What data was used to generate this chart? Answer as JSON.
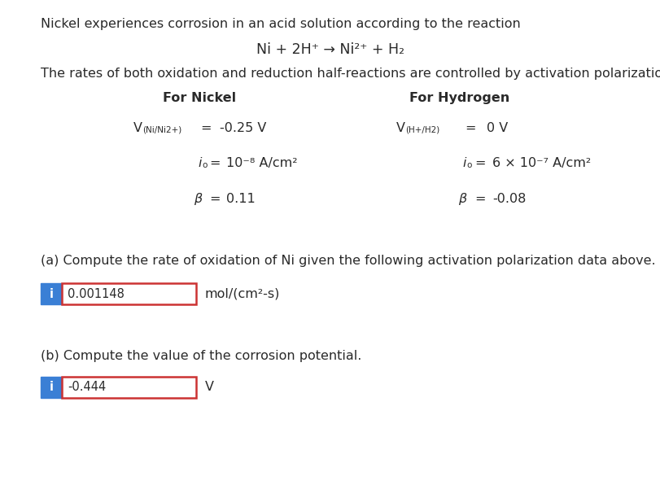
{
  "background_color": "#ffffff",
  "text_color": "#2a2a2a",
  "box_border_color": "#cc3333",
  "info_box_color": "#3a7fd5",
  "line1": "Nickel experiences corrosion in an acid solution according to the reaction",
  "reaction": "Ni + 2H⁺ → Ni²⁺ + H₂",
  "line2": "The rates of both oxidation and reduction half-reactions are controlled by activation polarization.",
  "for_nickel": "For Nickel",
  "for_hydrogen": "For Hydrogen",
  "part_a_text": "(a) Compute the rate of oxidation of Ni given the following activation polarization data above.",
  "part_a_answer": "0.001148",
  "part_a_unit": "mol/(cm²-s)",
  "part_b_text": "(b) Compute the value of the corrosion potential.",
  "part_b_answer": "-0.444",
  "part_b_unit": "V",
  "fs": 11.5,
  "fs_small": 7.5
}
